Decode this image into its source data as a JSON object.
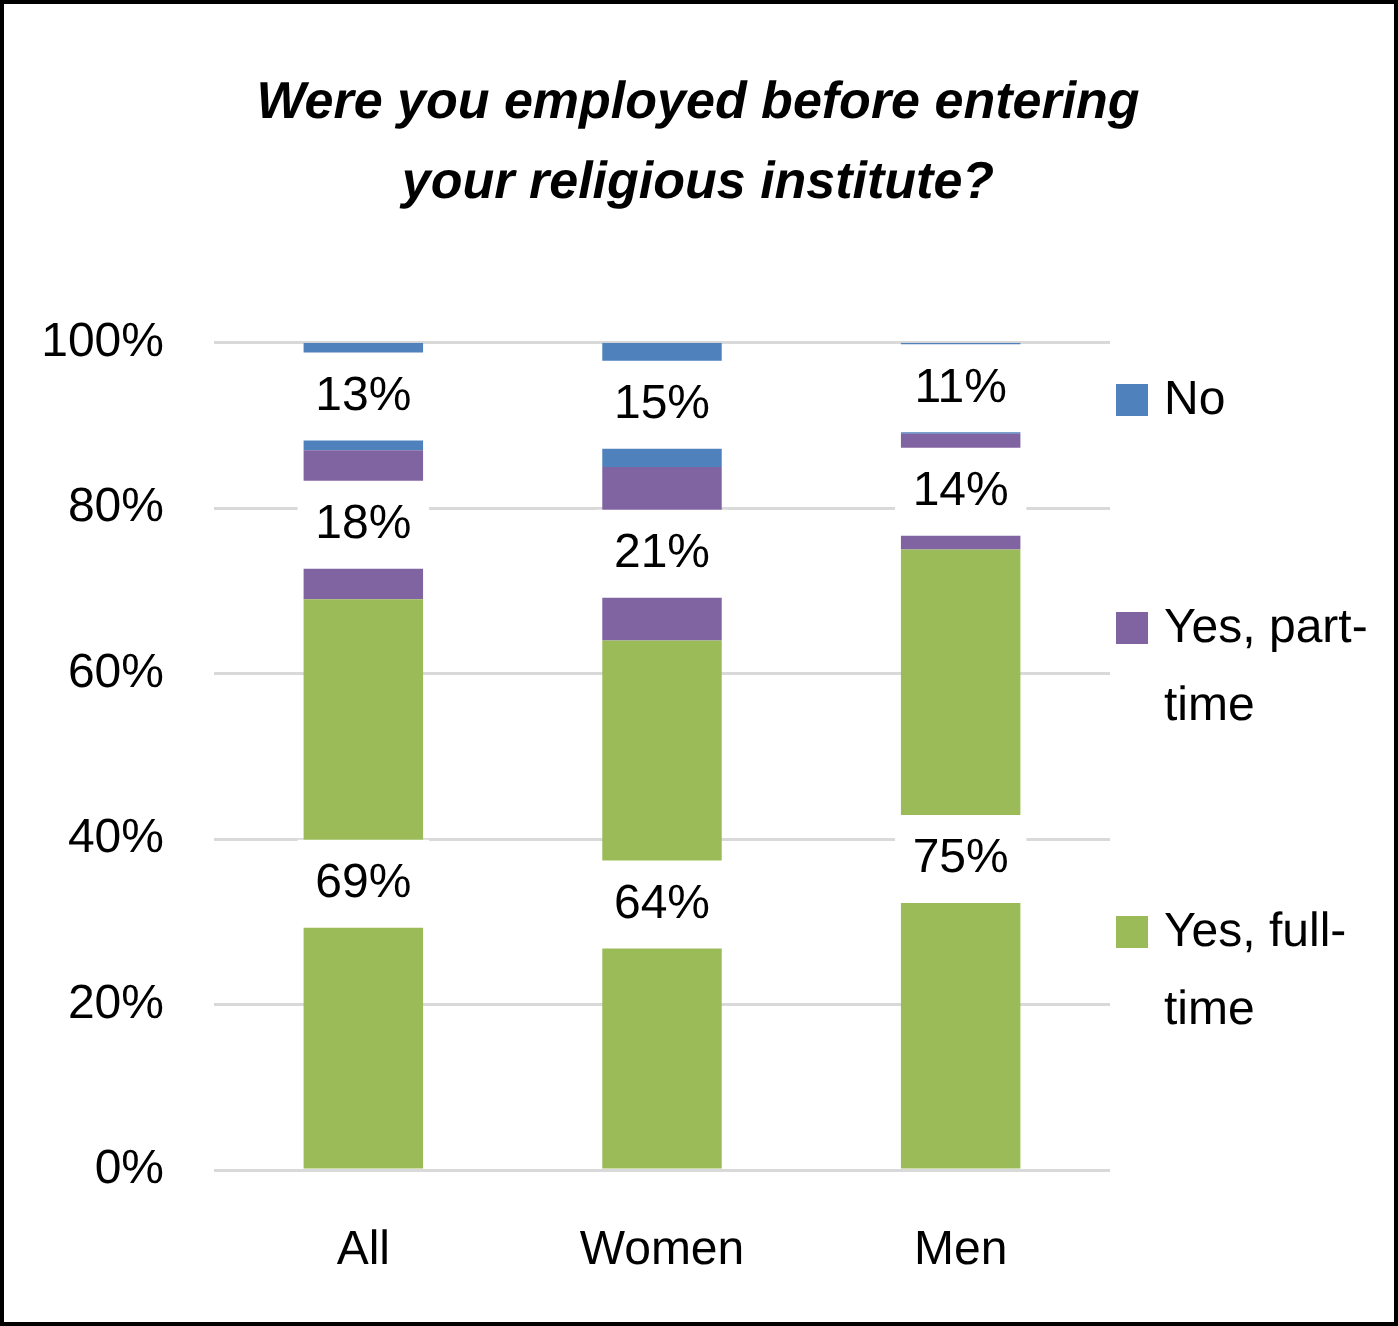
{
  "chart_data": {
    "type": "bar",
    "title": "Were you employed before entering your religious institute?",
    "categories": [
      "All",
      "Women",
      "Men"
    ],
    "series": [
      {
        "name": "Yes, full-time",
        "color": "#9bbb59",
        "values": [
          69,
          64,
          75
        ],
        "value_labels": [
          "69%",
          "64%",
          "75%"
        ]
      },
      {
        "name": "Yes, part-time",
        "color": "#8064a2",
        "values": [
          18,
          21,
          14
        ],
        "value_labels": [
          "18%",
          "21%",
          "14%"
        ]
      },
      {
        "name": "No",
        "color": "#4f81bd",
        "values": [
          13,
          15,
          11
        ],
        "value_labels": [
          "13%",
          "15%",
          "11%"
        ]
      }
    ],
    "stacked": true,
    "ylim": [
      0,
      100
    ],
    "yticks": [
      {
        "value": 0,
        "label": "0%"
      },
      {
        "value": 20,
        "label": "20%"
      },
      {
        "value": 40,
        "label": "40%"
      },
      {
        "value": 60,
        "label": "60%"
      },
      {
        "value": 80,
        "label": "80%"
      },
      {
        "value": 100,
        "label": "100%"
      }
    ],
    "grid": "y",
    "legend": "right"
  }
}
